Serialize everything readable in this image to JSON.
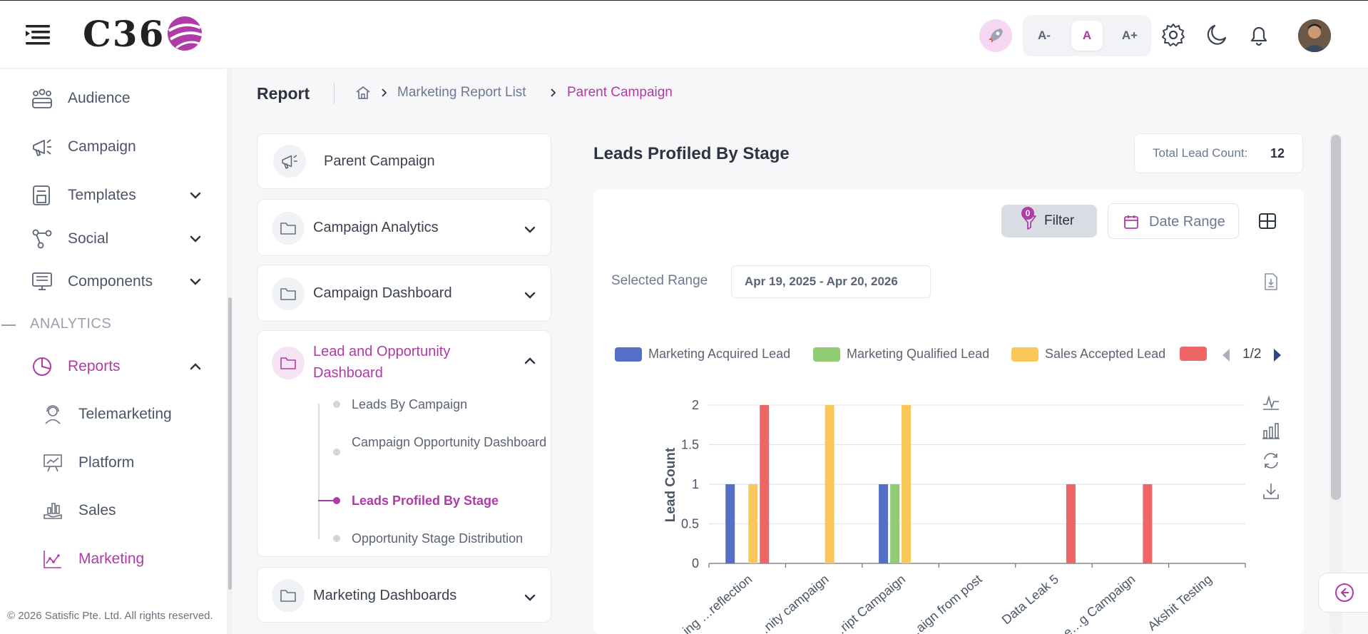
{
  "header": {
    "logo_text": "C36",
    "font_sizes": [
      "A-",
      "A",
      "A+"
    ],
    "active_font_size": "A"
  },
  "sidebar": {
    "items": [
      {
        "label": "Audience",
        "icon": "audience-icon"
      },
      {
        "label": "Campaign",
        "icon": "megaphone-icon"
      },
      {
        "label": "Templates",
        "icon": "templates-icon"
      },
      {
        "label": "Social",
        "icon": "social-icon"
      },
      {
        "label": "Components",
        "icon": "components-icon"
      }
    ],
    "section_title": "ANALYTICS",
    "reports_label": "Reports",
    "sub_items": [
      {
        "label": "Telemarketing",
        "icon": "headset-icon"
      },
      {
        "label": "Platform",
        "icon": "presentation-icon"
      },
      {
        "label": "Sales",
        "icon": "sales-icon"
      },
      {
        "label": "Marketing",
        "icon": "marketing-chart-icon"
      }
    ],
    "copyright": "© 2026 Satisfic Pte. Ltd. All rights reserved."
  },
  "page": {
    "title": "Report",
    "breadcrumb": [
      "Marketing Report List",
      "Parent Campaign"
    ]
  },
  "menu": {
    "parent": "Parent Campaign",
    "sections": [
      "Campaign Analytics",
      "Campaign Dashboard"
    ],
    "open_section": "Lead and Opportunity Dashboard",
    "open_items": [
      "Leads By Campaign",
      "Campaign Opportunity Dashboard",
      "Leads Profiled By Stage",
      "Opportunity Stage Distribution"
    ],
    "active_item": "Leads Profiled By Stage",
    "last_section": "Marketing Dashboards"
  },
  "panel": {
    "title": "Leads Profiled By Stage",
    "total_label": "Total Lead Count:",
    "total_value": "12",
    "filter_label": "Filter",
    "filter_badge": "0",
    "date_label": "Date Range",
    "range_label": "Selected Range",
    "range_value": "Apr 19, 2025 - Apr 20, 2026",
    "legend_page": "1/2"
  },
  "chart_data": {
    "type": "bar",
    "xlabel": "",
    "ylabel": "Lead Count",
    "ylim": [
      0,
      2
    ],
    "yticks": [
      0,
      0.5,
      1,
      1.5,
      2
    ],
    "categories": [
      "…ing …reflection",
      "…nity campaign",
      "…ript Campaign",
      "…aign from post",
      "Data Leak 5",
      "…e…g Campaign",
      "Akshit Testing"
    ],
    "series": [
      {
        "name": "Marketing Acquired Lead",
        "color": "#5470c6",
        "values": [
          1,
          0,
          1,
          0,
          0,
          0,
          0
        ]
      },
      {
        "name": "Marketing Qualified Lead",
        "color": "#91cc75",
        "values": [
          0,
          0,
          1,
          0,
          0,
          0,
          0
        ]
      },
      {
        "name": "Sales Accepted Lead",
        "color": "#fac858",
        "values": [
          1,
          2,
          2,
          0,
          0,
          0,
          0
        ]
      },
      {
        "name": "",
        "color": "#ee6666",
        "values": [
          2,
          0,
          0,
          0,
          1,
          1,
          0
        ]
      }
    ]
  }
}
